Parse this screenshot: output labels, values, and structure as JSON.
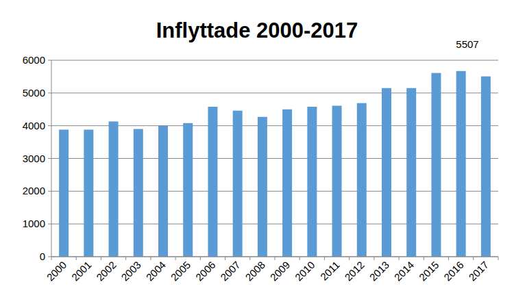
{
  "chart_data": {
    "type": "bar",
    "title": "Inflyttade 2000-2017",
    "annotations": [
      "5507"
    ],
    "categories": [
      "2000",
      "2001",
      "2002",
      "2003",
      "2004",
      "2005",
      "2006",
      "2007",
      "2008",
      "2009",
      "2010",
      "2011",
      "2012",
      "2013",
      "2014",
      "2015",
      "2016",
      "2017"
    ],
    "values": [
      3880,
      3880,
      4130,
      3900,
      4000,
      4080,
      4580,
      4460,
      4270,
      4500,
      4580,
      4610,
      4690,
      5150,
      5150,
      5610,
      5670,
      5507
    ],
    "color": "#5b9bd5",
    "ylim": [
      0,
      6000
    ],
    "yticks": [
      0,
      1000,
      2000,
      3000,
      4000,
      5000,
      6000
    ],
    "grid": true
  }
}
